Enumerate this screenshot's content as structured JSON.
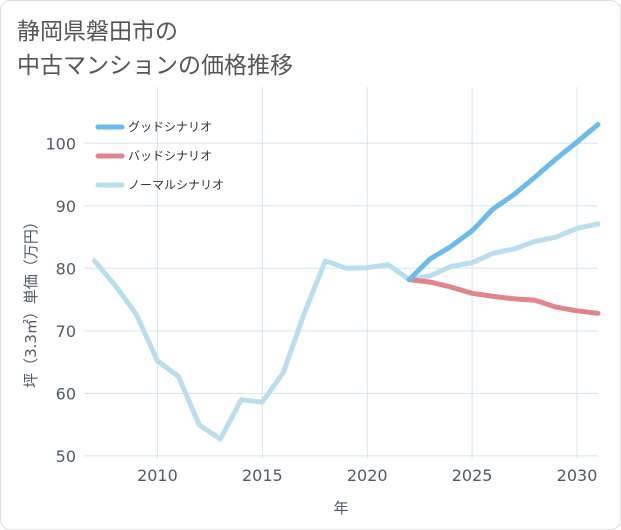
{
  "title": {
    "line1": "静岡県磐田市の",
    "line2": "中古マンションの価格推移"
  },
  "chart_data": {
    "type": "line",
    "xlabel": "年",
    "ylabel": "坪（3.3㎡）単価（万円）",
    "xlim": [
      2006.5,
      2031
    ],
    "ylim": [
      49.5,
      109
    ],
    "xticks": [
      2010,
      2015,
      2020,
      2025,
      2030
    ],
    "yticks": [
      50,
      60,
      70,
      80,
      90,
      100
    ],
    "grid": true,
    "legend_position": "top-left",
    "series": [
      {
        "name": "グッドシナリオ",
        "color": "#6bbbee",
        "x": [
          2022,
          2023,
          2024,
          2025,
          2026,
          2027,
          2028,
          2029,
          2030,
          2031
        ],
        "y": [
          78.2,
          81.5,
          83.5,
          86.0,
          89.5,
          91.8,
          94.6,
          97.5,
          100.2,
          103.0
        ]
      },
      {
        "name": "バッドシナリオ",
        "color": "#e0858c",
        "x": [
          2022,
          2023,
          2024,
          2025,
          2026,
          2027,
          2028,
          2029,
          2030,
          2031
        ],
        "y": [
          78.2,
          77.8,
          77.0,
          76.0,
          75.5,
          75.1,
          74.9,
          73.8,
          73.2,
          72.8
        ]
      },
      {
        "name": "ノーマルシナリオ",
        "color": "#badeed",
        "x": [
          2007,
          2008,
          2009,
          2010,
          2011,
          2012,
          2013,
          2014,
          2015,
          2016,
          2017,
          2018,
          2019,
          2020,
          2021,
          2022,
          2023,
          2024,
          2025,
          2026,
          2027,
          2028,
          2029,
          2030,
          2031
        ],
        "y": [
          81.2,
          77.2,
          72.6,
          65.2,
          62.7,
          54.9,
          52.7,
          59.0,
          58.6,
          63.3,
          72.8,
          81.2,
          80.0,
          80.1,
          80.6,
          78.2,
          78.8,
          80.3,
          80.9,
          82.4,
          83.1,
          84.3,
          85.0,
          86.4,
          87.1
        ]
      }
    ]
  }
}
